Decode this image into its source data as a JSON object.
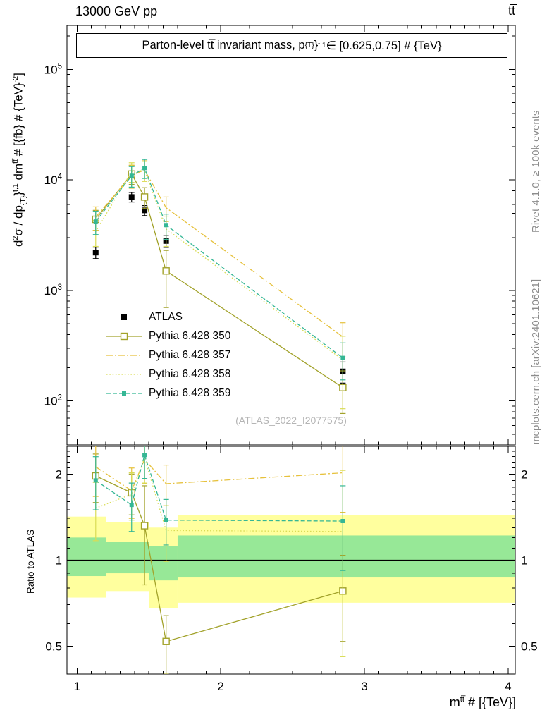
{
  "header": {
    "left_title": "13000 GeV pp",
    "right_title": "tt̅"
  },
  "panel_title_segments": [
    {
      "t": "Parton-level tt̅ invariant mass, p"
    },
    {
      "t": "{T}",
      "sub": true
    },
    {
      "t": "}"
    },
    {
      "t": "t,1",
      "sup": true
    },
    {
      "t": " ∈ [0.625,0.75] # {TeV}"
    }
  ],
  "ylabel_segments": [
    {
      "t": "d"
    },
    {
      "t": "2",
      "sup": true
    },
    {
      "t": "σ / dp"
    },
    {
      "t": "{T}",
      "sub": true
    },
    {
      "t": "}"
    },
    {
      "t": "t,1",
      "sup": true
    },
    {
      "t": " dm"
    },
    {
      "t": "tt̅",
      "sup": true
    },
    {
      "t": " # [{fb} # {TeV}"
    },
    {
      "t": "-2",
      "sup": true
    },
    {
      "t": "]"
    }
  ],
  "xlabel_segments": [
    {
      "t": "m"
    },
    {
      "t": "tt̅",
      "sup": true
    },
    {
      "t": " # [{TeV}]"
    }
  ],
  "ratio_label": "Ratio to ATLAS",
  "side_notes": {
    "top": "Rivet 4.1.0, ≥ 100k events",
    "bottom": "mcplots.cern.ch [arXiv:2401.10621]"
  },
  "watermark": "(ATLAS_2022_I2077575)",
  "chart_data": {
    "type": "line",
    "x": [
      1.13,
      1.38,
      1.47,
      1.62,
      2.85
    ],
    "xlim": [
      0.93,
      4.05
    ],
    "xticks": [
      1,
      2,
      3,
      4
    ],
    "main_panel": {
      "ylog": true,
      "ylim": [
        40,
        250000
      ],
      "yticks_exp": [
        2,
        3,
        4,
        5
      ]
    },
    "ratio_panel": {
      "ylog": true,
      "ylim": [
        0.4,
        2.5
      ],
      "yticks": [
        0.5,
        1,
        2
      ]
    },
    "series": [
      {
        "id": "atlas",
        "label": "ATLAS",
        "color": "#000000",
        "line": "none",
        "marker": "sq",
        "marker_size": 8,
        "values": [
          2200,
          7000,
          5300,
          2800,
          185
        ],
        "errors": [
          260,
          700,
          550,
          350,
          40
        ],
        "ratio": null,
        "ratio_errors": null
      },
      {
        "id": "py350",
        "label": "Pythia 6.428 350",
        "color": "#a2a22a",
        "line": "solid",
        "marker": "sq-open",
        "marker_size": 9,
        "values": [
          4400,
          11300,
          7000,
          1500,
          132
        ],
        "errors": [
          900,
          2200,
          1500,
          800,
          55
        ],
        "ratio": [
          1.97,
          1.72,
          1.32,
          0.52,
          0.78
        ],
        "ratio_errors": [
          0.38,
          0.28,
          0.5,
          0.12,
          0.26
        ]
      },
      {
        "id": "py357",
        "label": "Pythia 6.428 357",
        "color": "#e6c13c",
        "line": "dashdot",
        "marker": "none",
        "marker_size": 0,
        "values": [
          4600,
          11000,
          12300,
          5600,
          380
        ],
        "errors": [
          1100,
          2600,
          2600,
          1400,
          130
        ],
        "ratio": [
          2.12,
          1.75,
          2.25,
          1.85,
          2.02
        ],
        "ratio_errors": [
          0.45,
          0.35,
          0.4,
          0.3,
          0.55
        ]
      },
      {
        "id": "py358",
        "label": "Pythia 6.428 358",
        "color": "#d9dc55",
        "line": "dot",
        "marker": "none",
        "marker_size": 0,
        "values": [
          3400,
          11900,
          12200,
          3600,
          235
        ],
        "errors": [
          900,
          2400,
          2500,
          1100,
          150
        ],
        "ratio": [
          1.52,
          1.7,
          2.28,
          1.27,
          1.26
        ],
        "ratio_errors": [
          0.35,
          0.32,
          0.42,
          0.28,
          0.8
        ]
      },
      {
        "id": "py359",
        "label": "Pythia 6.428 359",
        "color": "#35b795",
        "line": "dash",
        "marker": "sq",
        "marker_size": 6,
        "values": [
          4200,
          10900,
          12800,
          3900,
          245
        ],
        "errors": [
          1000,
          2300,
          2500,
          1000,
          90
        ],
        "ratio": [
          1.9,
          1.56,
          2.33,
          1.38,
          1.37
        ],
        "ratio_errors": [
          0.4,
          0.3,
          0.4,
          0.25,
          0.45
        ]
      }
    ],
    "bands": {
      "edges": [
        0.93,
        1.2,
        1.5,
        1.7,
        4.05
      ],
      "yellow": {
        "color": "#ffff9e",
        "lo": [
          0.74,
          0.78,
          0.68,
          0.71
        ],
        "hi": [
          1.42,
          1.36,
          1.3,
          1.44
        ]
      },
      "green": {
        "color": "#97e897",
        "lo": [
          0.88,
          0.9,
          0.85,
          0.87
        ],
        "hi": [
          1.2,
          1.16,
          1.12,
          1.22
        ]
      }
    }
  }
}
